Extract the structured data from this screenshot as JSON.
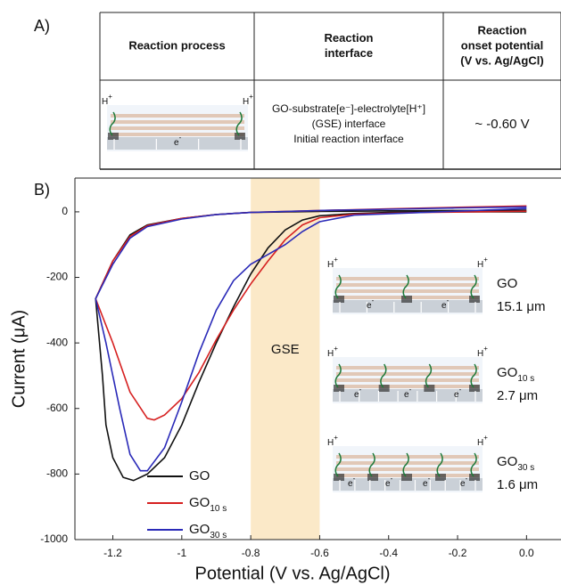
{
  "panel_a": {
    "label": "A)",
    "table": {
      "headers": [
        [
          "Reaction process"
        ],
        [
          "Reaction",
          "interface"
        ],
        [
          "Reaction",
          "onset potential",
          "(V vs. Ag/AgCl)"
        ]
      ],
      "row": {
        "interface": [
          "GO-substrate[e⁻]-electrolyte[H⁺]",
          "(GSE) interface",
          "Initial reaction interface"
        ],
        "potential": "~ -0.60 V"
      }
    }
  },
  "schematic": {
    "proton": "H",
    "proton_charge": "+",
    "electron": "e",
    "electron_charge": "-"
  },
  "chart_data": {
    "type": "line",
    "panel_label": "B)",
    "xlabel": "Potential (V vs. Ag/AgCl)",
    "ylabel": "Current (μA)",
    "xlim": [
      -1.31,
      0.1
    ],
    "ylim": [
      -1000,
      103
    ],
    "xticks": [
      -1.2,
      -1.0,
      -0.8,
      -0.6,
      -0.4,
      -0.2,
      {
        "value": 0,
        "label": "0.0"
      }
    ],
    "yticks": [
      0,
      -200,
      -400,
      -600,
      -800,
      -1000
    ],
    "band": {
      "range": [
        -0.8,
        -0.6
      ],
      "label": "GSE",
      "color": "#fbe9c8"
    },
    "series": [
      {
        "name": "GO",
        "color": "#111111",
        "x": [
          0,
          -0.2,
          -0.4,
          -0.6,
          -0.8,
          -0.9,
          -1.0,
          -1.1,
          -1.15,
          -1.2,
          -1.25,
          -1.23,
          -1.22,
          -1.2,
          -1.17,
          -1.14,
          -1.1,
          -1.05,
          -1.0,
          -0.95,
          -0.9,
          -0.85,
          -0.8,
          -0.75,
          -0.7,
          -0.65,
          -0.6,
          -0.5,
          -0.4,
          -0.2,
          0
        ],
        "values": [
          5,
          4,
          3,
          1,
          -2,
          -8,
          -20,
          -40,
          -70,
          -150,
          -265,
          -500,
          -650,
          -750,
          -810,
          -820,
          -800,
          -750,
          -650,
          -520,
          -400,
          -290,
          -190,
          -110,
          -55,
          -25,
          -12,
          -5,
          -2,
          0,
          0
        ]
      },
      {
        "name": "GO",
        "subscript": "10 s",
        "color": "#d62020",
        "x": [
          0,
          -0.2,
          -0.4,
          -0.6,
          -0.8,
          -0.9,
          -1.0,
          -1.1,
          -1.15,
          -1.2,
          -1.25,
          -1.2,
          -1.15,
          -1.1,
          -1.08,
          -1.05,
          -1.0,
          -0.95,
          -0.9,
          -0.85,
          -0.8,
          -0.75,
          -0.7,
          -0.65,
          -0.6,
          -0.5,
          -0.3,
          0
        ],
        "values": [
          18,
          14,
          9,
          4,
          -2,
          -8,
          -20,
          -42,
          -75,
          -150,
          -265,
          -400,
          -550,
          -630,
          -635,
          -620,
          -570,
          -490,
          -390,
          -300,
          -220,
          -150,
          -85,
          -40,
          -18,
          -7,
          -2,
          2
        ]
      },
      {
        "name": "GO",
        "subscript": "30 s",
        "color": "#2a2ab8",
        "x": [
          0,
          -0.2,
          -0.4,
          -0.6,
          -0.8,
          -0.9,
          -1.0,
          -1.1,
          -1.15,
          -1.2,
          -1.25,
          -1.22,
          -1.18,
          -1.15,
          -1.12,
          -1.1,
          -1.05,
          -1.0,
          -0.95,
          -0.9,
          -0.85,
          -0.8,
          -0.75,
          -0.7,
          -0.65,
          -0.6,
          -0.5,
          -0.3,
          0
        ],
        "values": [
          15,
          12,
          8,
          4,
          -2,
          -8,
          -22,
          -45,
          -80,
          -160,
          -265,
          -400,
          -600,
          -740,
          -790,
          -790,
          -720,
          -580,
          -430,
          -300,
          -210,
          -160,
          -130,
          -100,
          -60,
          -30,
          -10,
          -2,
          10
        ]
      }
    ],
    "insets": [
      {
        "label": "GO",
        "thickness": "15.1 μm"
      },
      {
        "label": "GO",
        "subscript": "10 s",
        "thickness": "2.7 μm"
      },
      {
        "label": "GO",
        "subscript": "30 s",
        "thickness": "1.6 μm"
      }
    ]
  }
}
